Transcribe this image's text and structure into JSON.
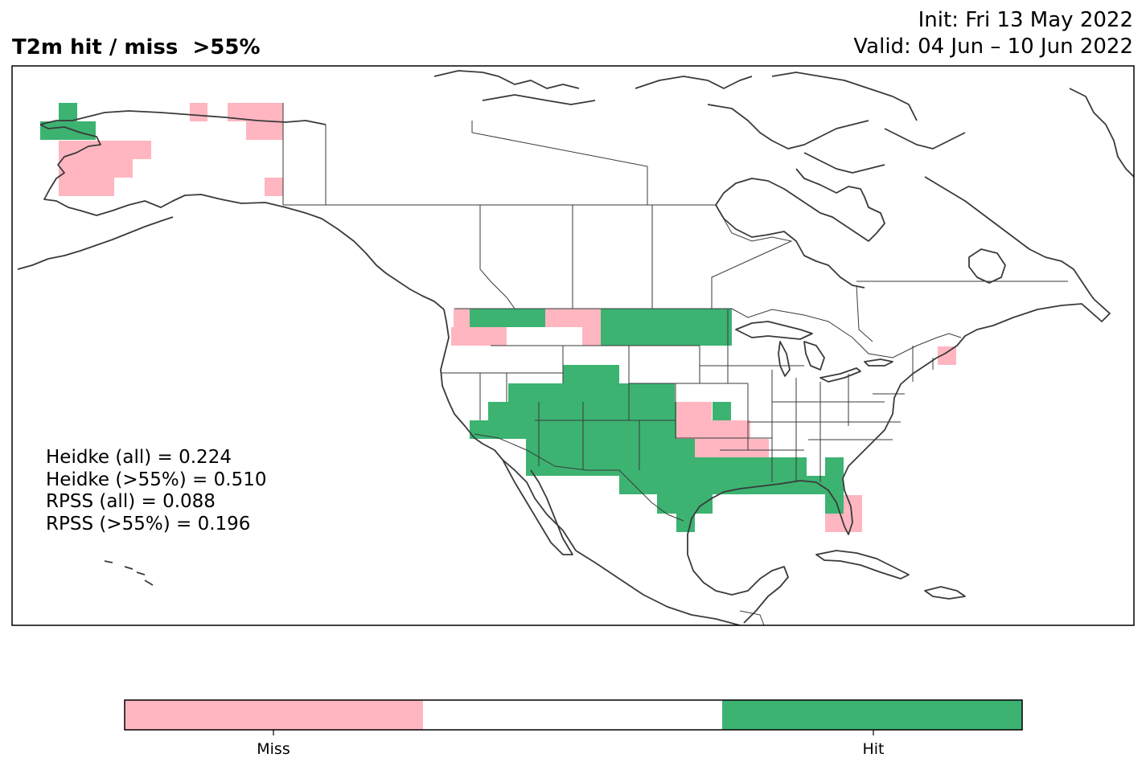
{
  "title": "T2m hit / miss  >55%",
  "init_text": "Init: Fri 13 May 2022",
  "valid_text": "Valid: 04 Jun – 10 Jun 2022",
  "stats": {
    "heidke_all": "Heidke (all) = 0.224",
    "heidke_55": "Heidke (>55%) = 0.510",
    "rpss_all": "RPSS (all) = 0.088",
    "rpss_55": "RPSS (>55%) = 0.196"
  },
  "colorbar": {
    "miss_label": "Miss",
    "hit_label": "Hit",
    "colors": {
      "miss": "#ffb6c1",
      "neutral": "#ffffff",
      "hit": "#3cb371"
    }
  },
  "map_colors": {
    "coast": "#3a3a3a",
    "border": "#3a3a3a",
    "frame": "#000000"
  }
}
